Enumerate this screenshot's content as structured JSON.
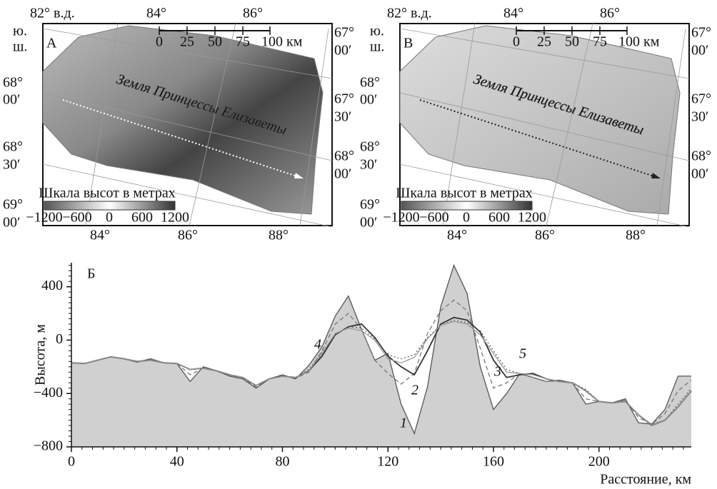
{
  "maps": [
    {
      "panel": "А",
      "top_labels": [
        "82° в.д.",
        "84°",
        "86°"
      ],
      "scale_labels": [
        "0",
        "25",
        "50",
        "75",
        "100 км"
      ],
      "region": "Земля Принцессы Елизаветы",
      "left_labels": [
        [
          "ю.",
          "ш."
        ],
        [
          "68°",
          "00′"
        ],
        [
          "68°",
          "30′"
        ],
        [
          "69°",
          "00′"
        ]
      ],
      "right_labels": [
        [
          "67°",
          "00′"
        ],
        [
          "67°",
          "30′"
        ],
        [
          "68°",
          "00′"
        ]
      ],
      "bottom_labels": [
        "84°",
        "86°",
        "88°"
      ],
      "legend_title": "Шкала высот в метрах",
      "legend_ticks": [
        "−1200",
        "−600",
        "0",
        "600",
        "1200"
      ]
    },
    {
      "panel": "В",
      "top_labels": [
        "82° в.д.",
        "84°",
        "86°"
      ],
      "scale_labels": [
        "0",
        "25",
        "50",
        "75",
        "100 км"
      ],
      "region": "Земля Принцессы Елизаветы",
      "left_labels": [
        [
          "ю.",
          "ш."
        ],
        [
          "68°",
          "00′"
        ],
        [
          "68°",
          "30′"
        ],
        [
          "69°",
          "00′"
        ]
      ],
      "right_labels": [
        [
          "67°",
          "00′"
        ],
        [
          "67°",
          "30′"
        ],
        [
          "68°",
          "00′"
        ]
      ],
      "bottom_labels": [
        "84°",
        "86°",
        "88°"
      ],
      "legend_title": "Шкала высот в метрах",
      "legend_ticks": [
        "−1200",
        "−600",
        "0",
        "600",
        "1200"
      ]
    }
  ],
  "chart_data": {
    "type": "line",
    "panel": "Б",
    "xlabel": "Расстояние, км",
    "ylabel": "Высота, м",
    "xlim": [
      0,
      235
    ],
    "ylim": [
      -800,
      580
    ],
    "xticks": [
      0,
      40,
      80,
      120,
      160,
      200
    ],
    "yticks": [
      {
        "value": -800,
        "label": "−800"
      },
      {
        "value": -400,
        "label": "−400"
      },
      0,
      400
    ],
    "x": [
      0,
      5,
      10,
      15,
      20,
      25,
      30,
      35,
      40,
      45,
      50,
      55,
      60,
      65,
      70,
      75,
      80,
      85,
      90,
      95,
      100,
      105,
      110,
      115,
      120,
      125,
      130,
      135,
      140,
      145,
      150,
      155,
      160,
      165,
      170,
      175,
      180,
      185,
      190,
      195,
      200,
      205,
      210,
      215,
      220,
      225,
      230,
      235
    ],
    "series": [
      {
        "name": "1",
        "color": "#555555",
        "values": [
          -170,
          -175,
          -150,
          -125,
          -140,
          -165,
          -140,
          -170,
          -175,
          -310,
          -200,
          -230,
          -270,
          -290,
          -360,
          -290,
          -260,
          -290,
          -190,
          -50,
          180,
          330,
          80,
          -150,
          -100,
          -480,
          -700,
          -350,
          250,
          560,
          350,
          -200,
          -520,
          -400,
          -250,
          -280,
          -310,
          -300,
          -320,
          -480,
          -460,
          -470,
          -440,
          -620,
          -630,
          -520,
          -270,
          -270
        ]
      },
      {
        "name": "2",
        "color": "#777777",
        "values": [
          -170,
          -175,
          -150,
          -125,
          -140,
          -160,
          -145,
          -170,
          -175,
          -260,
          -210,
          -230,
          -265,
          -285,
          -350,
          -290,
          -265,
          -285,
          -240,
          -80,
          120,
          200,
          80,
          -150,
          -250,
          -330,
          -250,
          50,
          220,
          300,
          220,
          -60,
          -360,
          -320,
          -250,
          -280,
          -310,
          -305,
          -320,
          -440,
          -460,
          -470,
          -450,
          -580,
          -630,
          -550,
          -380,
          -300
        ]
      },
      {
        "name": "3",
        "color": "#333333",
        "values": [
          -170,
          -175,
          -150,
          -125,
          -140,
          -160,
          -150,
          -170,
          -175,
          -220,
          -210,
          -230,
          -260,
          -280,
          -340,
          -290,
          -270,
          -280,
          -230,
          -120,
          40,
          100,
          120,
          20,
          -120,
          -200,
          -260,
          -80,
          120,
          170,
          150,
          60,
          -150,
          -280,
          -260,
          -250,
          -290,
          -310,
          -320,
          -380,
          -460,
          -470,
          -460,
          -560,
          -640,
          -600,
          -500,
          -380
        ]
      },
      {
        "name": "4",
        "color": "#666666",
        "values": [
          -170,
          -175,
          -150,
          -125,
          -140,
          -160,
          -150,
          -170,
          -175,
          -220,
          -210,
          -230,
          -260,
          -280,
          -340,
          -290,
          -270,
          -280,
          -220,
          -90,
          40,
          100,
          90,
          10,
          -110,
          -140,
          -110,
          20,
          110,
          150,
          130,
          70,
          -80,
          -220,
          -250,
          -260,
          -290,
          -310,
          -320,
          -370,
          -460,
          -470,
          -460,
          -560,
          -630,
          -600,
          -480,
          -360
        ]
      },
      {
        "name": "5",
        "color": "#999999",
        "values": [
          -170,
          -175,
          -150,
          -125,
          -140,
          -160,
          -150,
          -170,
          -175,
          -220,
          -210,
          -230,
          -260,
          -280,
          -340,
          -290,
          -270,
          -280,
          -230,
          -100,
          50,
          90,
          70,
          0,
          -140,
          -170,
          -130,
          10,
          110,
          140,
          120,
          40,
          -100,
          -240,
          -250,
          -260,
          -290,
          -310,
          -320,
          -380,
          -460,
          -470,
          -460,
          -560,
          -640,
          -600,
          -500,
          -380
        ]
      }
    ]
  }
}
